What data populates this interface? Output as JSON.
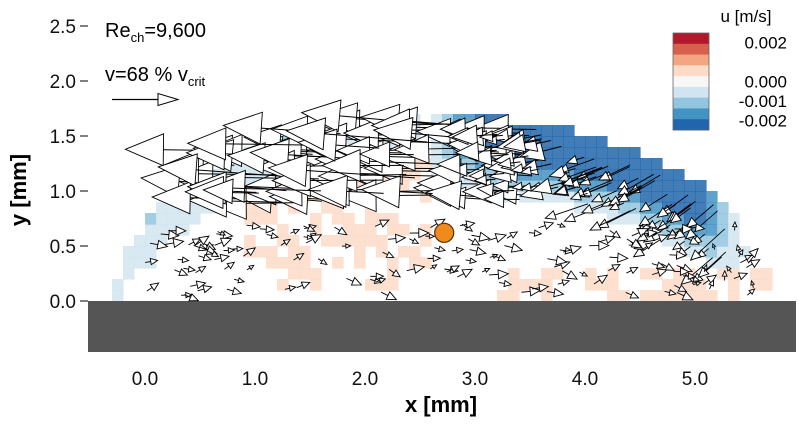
{
  "chart_data": {
    "type": "vector-field",
    "xlabel": "x [mm]",
    "ylabel": "y [mm]",
    "xlim": [
      -0.5,
      6.0
    ],
    "ylim": [
      -0.45,
      2.6
    ],
    "x_ticks": [
      "0.0",
      "1.0",
      "2.0",
      "3.0",
      "4.0",
      "5.0"
    ],
    "x_tick_values": [
      0,
      1,
      2,
      3,
      4,
      5
    ],
    "y_ticks": [
      "0.0",
      "0.5",
      "1.0",
      "1.5",
      "2.0",
      "2.5"
    ],
    "y_tick_values": [
      0,
      0.5,
      1.0,
      1.5,
      2.0,
      2.5
    ],
    "wall_top_y": 0.0,
    "wall_color": "#555555",
    "annotation": {
      "re_main": "Re",
      "re_sub": "ch",
      "re_value": "=9,600",
      "v_main": "v=68 % v",
      "v_sub": "crit"
    },
    "reference_arrow": {
      "x0": 0.1,
      "x1": 0.7,
      "y": 1.75
    },
    "particle": {
      "x": 2.72,
      "y": 0.62,
      "color": "#f08a1c"
    },
    "colorbar": {
      "title": "u [m/s]",
      "range": [
        -0.0025,
        0.0025
      ],
      "tick_labels": [
        "0.002",
        "0.000",
        "-0.001",
        "-0.002"
      ],
      "tick_values": [
        0.002,
        0.0,
        -0.001,
        -0.002
      ],
      "colors": [
        "#b2182b",
        "#d6604d",
        "#f4a582",
        "#fddbc7",
        "#f7f7f7",
        "#d1e5f0",
        "#92c5de",
        "#4393c3",
        "#2166ac"
      ]
    },
    "flow_region": {
      "center_x": 2.72,
      "half_width": 3.0,
      "height": 1.68,
      "strong_band": {
        "x_range": [
          2.8,
          5.3
        ],
        "inner_y": 0.9,
        "outer_y": 1.65,
        "u": -0.0025
      },
      "light_patch": {
        "x_range": [
          0.9,
          2.6
        ],
        "y_range": [
          0.1,
          1.3
        ],
        "u": 0.0006
      }
    },
    "vectors": {
      "strong_jet": {
        "x_range": [
          0.8,
          3.6
        ],
        "y_range": [
          0.85,
          1.65
        ],
        "dominant_direction": "leftward",
        "max_arrow_length_mm": 1.35
      },
      "downstream_curve": {
        "x_range": [
          3.0,
          5.3
        ],
        "y_range": [
          0.3,
          1.4
        ],
        "dominant_direction": "down-left following the vortex",
        "max_arrow_length_mm": 0.45
      },
      "near_wall": {
        "x_range": [
          0.0,
          5.6
        ],
        "y_range": [
          0.05,
          0.7
        ],
        "dominant_direction": "rightward",
        "max_arrow_length_mm": 0.18
      }
    }
  }
}
